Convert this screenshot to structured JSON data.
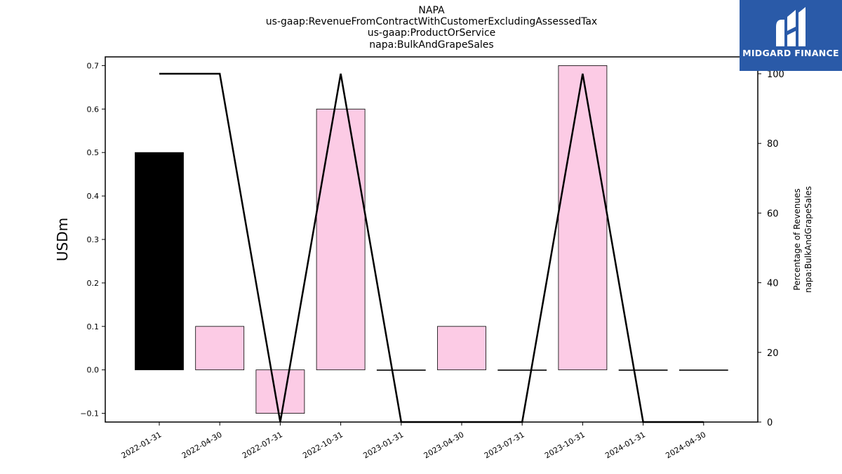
{
  "chart_data": {
    "type": "bar",
    "title_lines": [
      "NAPA",
      "us-gaap:RevenueFromContractWithCustomerExcludingAssessedTax",
      "us-gaap:ProductOrService",
      "napa:BulkAndGrapeSales"
    ],
    "categories": [
      "2022-01-31",
      "2022-04-30",
      "2022-07-31",
      "2022-10-31",
      "2023-01-31",
      "2023-04-30",
      "2023-07-31",
      "2023-10-31",
      "2024-01-31",
      "2024-04-30"
    ],
    "series": [
      {
        "type": "bar",
        "values": [
          0.5,
          0.1,
          -0.1,
          0.6,
          0.0,
          0.1,
          0.0,
          0.7,
          0.0,
          0.0
        ],
        "colors": [
          "#000000",
          "#fccbe5",
          "#fccbe5",
          "#fccbe5",
          "#fccbe5",
          "#fccbe5",
          "#fccbe5",
          "#fccbe5",
          "#fccbe5",
          "#fccbe5"
        ]
      },
      {
        "type": "line",
        "axis": "right",
        "values": [
          100,
          100,
          0,
          100,
          0,
          0,
          0,
          100,
          0,
          0
        ],
        "color": "#000000"
      }
    ],
    "ylabel": "USDm",
    "ylim": [
      -0.12,
      0.72
    ],
    "yticks": [
      "−0.1",
      "0.0",
      "0.1",
      "0.2",
      "0.3",
      "0.4",
      "0.5",
      "0.6",
      "0.7"
    ],
    "ytick_values": [
      -0.1,
      0.0,
      0.1,
      0.2,
      0.3,
      0.4,
      0.5,
      0.6,
      0.7
    ],
    "y2label_lines": [
      "Percentage of Revenues",
      "napa:BulkAndGrapeSales"
    ],
    "y2lim": [
      0,
      100
    ],
    "y2ticks": [
      "0",
      "20",
      "40",
      "60",
      "80",
      "100"
    ],
    "y2tick_values": [
      0,
      20,
      40,
      60,
      80,
      100
    ],
    "grid": false
  },
  "logo": {
    "text": "MIDGARD FINANCE",
    "color": "#2a5aa8"
  }
}
